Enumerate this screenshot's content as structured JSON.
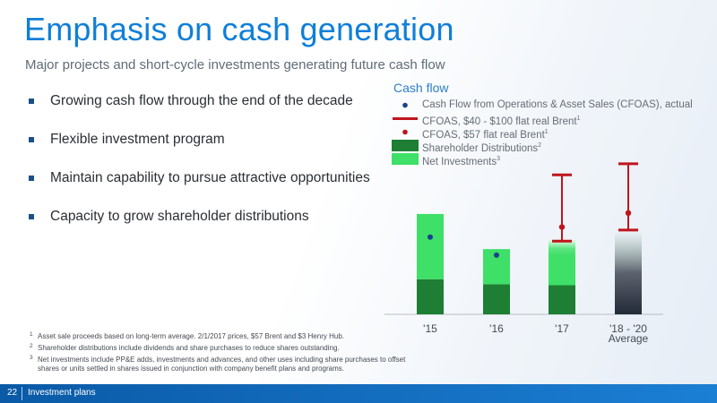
{
  "title": "Emphasis on cash generation",
  "subtitle": "Major projects and short-cycle investments generating future cash flow",
  "bullets": [
    "Growing cash flow through the end of the decade",
    "Flexible investment program",
    "Maintain capability to pursue attractive opportunities",
    "Capacity to grow shareholder distributions"
  ],
  "chart_data": {
    "type": "bar",
    "title": "Cash flow",
    "categories": [
      "'15",
      "'16",
      "'17",
      "'18 - '20"
    ],
    "category_sublabels": [
      "",
      "",
      "",
      "Average"
    ],
    "series": [
      {
        "name": "Shareholder Distributions",
        "footnote": "2",
        "color": "#1e7e34",
        "values": [
          35,
          30,
          29,
          41
        ]
      },
      {
        "name": "Net Investments",
        "footnote": "3",
        "color": "#3ee067",
        "values": [
          65,
          35,
          45,
          42
        ]
      }
    ],
    "cfoas_actual": {
      "name": "Cash Flow from Operations & Asset Sales (CFOAS), actual",
      "color": "#1b3f8f",
      "values": [
        77,
        59,
        null,
        null
      ]
    },
    "cfoas_range": {
      "name": "CFOAS, $40 - $100 flat real Brent",
      "footnote": "1",
      "color": "#c0141c",
      "low": [
        null,
        null,
        73,
        84
      ],
      "high": [
        null,
        null,
        139,
        150
      ]
    },
    "cfoas_57": {
      "name": "CFOAS, $57 flat real Brent",
      "footnote": "1",
      "color": "#c0141c",
      "values": [
        null,
        null,
        87,
        101
      ]
    },
    "ylim": [
      0,
      155
    ],
    "grid": false,
    "legend_position": "top"
  },
  "footnotes": [
    {
      "num": "1",
      "text": "Asset sale proceeds based on long-term average. 2/1/2017 prices, $57 Brent and $3 Henry Hub."
    },
    {
      "num": "2",
      "text": "Shareholder distributions include dividends and share purchases to reduce shares outstanding."
    },
    {
      "num": "3",
      "text": "Net investments include PP&E adds, investments and advances, and other uses including share purchases to offset shares or units settled in shares issued in conjunction with company benefit plans and programs."
    }
  ],
  "footer": {
    "page_number": "22",
    "section": "Investment plans"
  }
}
